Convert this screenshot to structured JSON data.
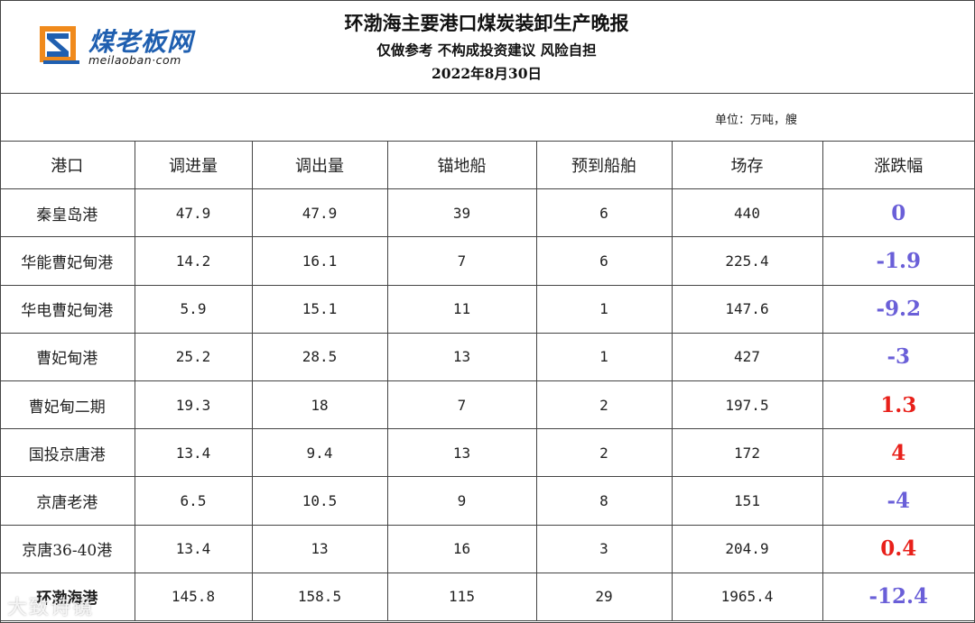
{
  "header": {
    "logo_text": "煤老板网",
    "logo_sub": "meilaoban·com",
    "title": "环渤海主要港口煤炭装卸生产晚报",
    "subtitle": "仅做参考 不构成投资建议 风险自担",
    "date": "2022年8月30日"
  },
  "unit_label": "单位：万吨，艘",
  "table": {
    "headers": [
      "港口",
      "调进量",
      "调出量",
      "锚地船",
      "预到船舶",
      "场存",
      "涨跌幅"
    ],
    "rows": [
      {
        "port": "秦皇岛港",
        "in": "47.9",
        "out": "47.9",
        "anchor": "39",
        "expected": "6",
        "stock": "440",
        "change": "0"
      },
      {
        "port": "华能曹妃甸港",
        "in": "14.2",
        "out": "16.1",
        "anchor": "7",
        "expected": "6",
        "stock": "225.4",
        "change": "-1.9"
      },
      {
        "port": "华电曹妃甸港",
        "in": "5.9",
        "out": "15.1",
        "anchor": "11",
        "expected": "1",
        "stock": "147.6",
        "change": "-9.2"
      },
      {
        "port": "曹妃甸港",
        "in": "25.2",
        "out": "28.5",
        "anchor": "13",
        "expected": "1",
        "stock": "427",
        "change": "-3"
      },
      {
        "port": "曹妃甸二期",
        "in": "19.3",
        "out": "18",
        "anchor": "7",
        "expected": "2",
        "stock": "197.5",
        "change": "1.3"
      },
      {
        "port": "国投京唐港",
        "in": "13.4",
        "out": "9.4",
        "anchor": "13",
        "expected": "2",
        "stock": "172",
        "change": "4"
      },
      {
        "port": "京唐老港",
        "in": "6.5",
        "out": "10.5",
        "anchor": "9",
        "expected": "8",
        "stock": "151",
        "change": "-4"
      },
      {
        "port": "京唐36-40港",
        "in": "13.4",
        "out": "13",
        "anchor": "16",
        "expected": "3",
        "stock": "204.9",
        "change": "0.4"
      },
      {
        "port": "环渤海港",
        "in": "145.8",
        "out": "158.5",
        "anchor": "115",
        "expected": "29",
        "stock": "1965.4",
        "change": "-12.4"
      }
    ]
  },
  "colors": {
    "neutral_or_down": "#6a5fd8",
    "up": "#e8201a",
    "logo_blue": "#1f5fb0",
    "logo_orange": "#f08a1c"
  },
  "watermark": "大致诗镜"
}
